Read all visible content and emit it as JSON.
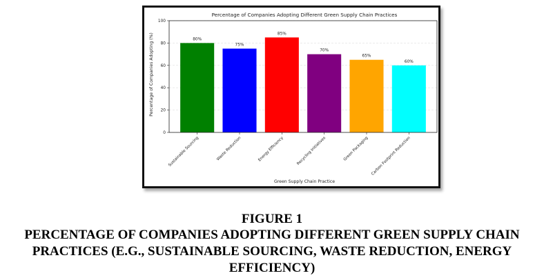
{
  "chart_data": {
    "type": "bar",
    "title": "Percentage of Companies Adopting Different Green Supply Chain Practices",
    "xlabel": "Green Supply Chain Practice",
    "ylabel": "Percentage of Companies Adopting (%)",
    "categories": [
      "Sustainable Sourcing",
      "Waste Reduction",
      "Energy Efficiency",
      "Recycling Initiatives",
      "Green Packaging",
      "Carbon Footprint Reduction"
    ],
    "values": [
      80,
      75,
      85,
      70,
      65,
      60
    ],
    "data_labels": [
      "80%",
      "75%",
      "85%",
      "70%",
      "65%",
      "60%"
    ],
    "colors": [
      "#008000",
      "#0000ff",
      "#ff0000",
      "#800080",
      "#ffa500",
      "#00ffff"
    ],
    "ylim": [
      0,
      100
    ],
    "yticks": [
      0,
      20,
      40,
      60,
      80,
      100
    ],
    "grid": "y",
    "legend": "none"
  },
  "caption": {
    "number": "FIGURE 1",
    "text": "PERCENTAGE OF COMPANIES ADOPTING DIFFERENT GREEN SUPPLY CHAIN PRACTICES (E.G., SUSTAINABLE SOURCING, WASTE REDUCTION, ENERGY EFFICIENCY)"
  }
}
